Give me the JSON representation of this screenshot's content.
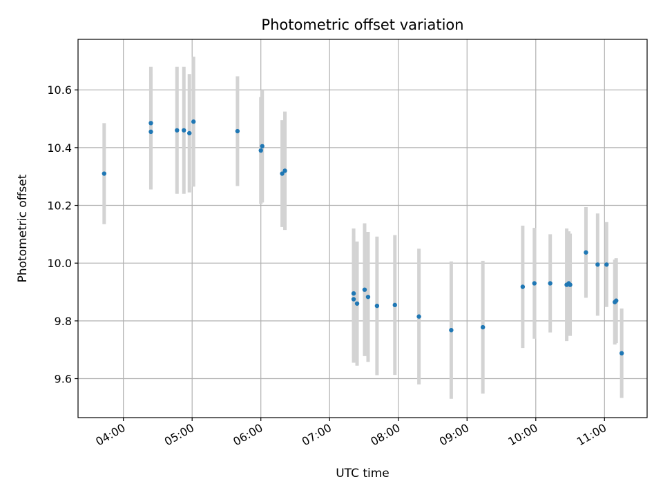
{
  "chart_data": {
    "type": "scatter",
    "title": "Photometric offset variation",
    "xlabel": "UTC time",
    "ylabel": "Photometric offset",
    "x_unit": "hours UTC",
    "xlim": [
      3.34,
      11.62
    ],
    "ylim": [
      9.465,
      10.775
    ],
    "xticks": [
      4,
      5,
      6,
      7,
      8,
      9,
      10,
      11
    ],
    "xtick_labels": [
      "04:00",
      "05:00",
      "06:00",
      "07:00",
      "08:00",
      "09:00",
      "10:00",
      "11:00"
    ],
    "yticks": [
      9.6,
      9.8,
      10.0,
      10.2,
      10.4,
      10.6
    ],
    "ytick_labels": [
      "9.6",
      "9.8",
      "10.0",
      "10.2",
      "10.4",
      "10.6"
    ],
    "grid": true,
    "point_color": "#1f77b4",
    "errorbar_color": "#d3d3d3",
    "points": [
      {
        "x": 3.72,
        "y": 10.31,
        "err": 0.175
      },
      {
        "x": 4.4,
        "y": 10.485,
        "err": 0.195
      },
      {
        "x": 4.4,
        "y": 10.455,
        "err": 0.2
      },
      {
        "x": 4.78,
        "y": 10.46,
        "err": 0.22
      },
      {
        "x": 4.88,
        "y": 10.46,
        "err": 0.22
      },
      {
        "x": 4.96,
        "y": 10.45,
        "err": 0.205
      },
      {
        "x": 5.02,
        "y": 10.49,
        "err": 0.225
      },
      {
        "x": 5.66,
        "y": 10.457,
        "err": 0.19
      },
      {
        "x": 6.0,
        "y": 10.39,
        "err": 0.185
      },
      {
        "x": 6.02,
        "y": 10.405,
        "err": 0.195
      },
      {
        "x": 6.31,
        "y": 10.31,
        "err": 0.185
      },
      {
        "x": 6.35,
        "y": 10.32,
        "err": 0.205
      },
      {
        "x": 7.35,
        "y": 9.895,
        "err": 0.225
      },
      {
        "x": 7.35,
        "y": 9.875,
        "err": 0.22
      },
      {
        "x": 7.4,
        "y": 9.86,
        "err": 0.215
      },
      {
        "x": 7.51,
        "y": 9.908,
        "err": 0.23
      },
      {
        "x": 7.56,
        "y": 9.883,
        "err": 0.225
      },
      {
        "x": 7.69,
        "y": 9.852,
        "err": 0.24
      },
      {
        "x": 7.95,
        "y": 9.855,
        "err": 0.242
      },
      {
        "x": 8.3,
        "y": 9.815,
        "err": 0.235
      },
      {
        "x": 8.77,
        "y": 9.768,
        "err": 0.238
      },
      {
        "x": 9.23,
        "y": 9.778,
        "err": 0.23
      },
      {
        "x": 9.81,
        "y": 9.918,
        "err": 0.212
      },
      {
        "x": 9.98,
        "y": 9.93,
        "err": 0.192
      },
      {
        "x": 10.21,
        "y": 9.93,
        "err": 0.17
      },
      {
        "x": 10.45,
        "y": 9.925,
        "err": 0.195
      },
      {
        "x": 10.48,
        "y": 9.93,
        "err": 0.18
      },
      {
        "x": 10.5,
        "y": 9.925,
        "err": 0.177
      },
      {
        "x": 10.73,
        "y": 10.037,
        "err": 0.157
      },
      {
        "x": 10.9,
        "y": 9.995,
        "err": 0.177
      },
      {
        "x": 11.03,
        "y": 9.995,
        "err": 0.147
      },
      {
        "x": 11.15,
        "y": 9.865,
        "err": 0.147
      },
      {
        "x": 11.17,
        "y": 9.87,
        "err": 0.147
      },
      {
        "x": 11.25,
        "y": 9.688,
        "err": 0.155
      }
    ]
  }
}
